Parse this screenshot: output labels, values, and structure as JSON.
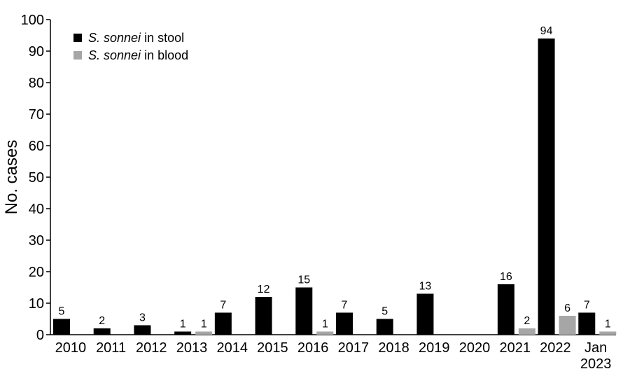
{
  "chart_data": {
    "type": "bar",
    "title": "",
    "xlabel": "",
    "ylabel": "No. cases",
    "ylim": [
      0,
      100
    ],
    "yticks": [
      0,
      10,
      20,
      30,
      40,
      50,
      60,
      70,
      80,
      90,
      100
    ],
    "categories": [
      [
        "2010"
      ],
      [
        "2011"
      ],
      [
        "2012"
      ],
      [
        "2013"
      ],
      [
        "2014"
      ],
      [
        "2015"
      ],
      [
        "2016"
      ],
      [
        "2017"
      ],
      [
        "2018"
      ],
      [
        "2019"
      ],
      [
        "2020"
      ],
      [
        "2021"
      ],
      [
        "2022"
      ],
      [
        "Jan",
        "2023"
      ]
    ],
    "series": [
      {
        "name_italic": "S. sonnei",
        "name_rest": " in stool",
        "color": "#000000",
        "values": [
          5,
          2,
          3,
          1,
          7,
          12,
          15,
          7,
          5,
          13,
          0,
          16,
          94,
          7
        ],
        "labels": [
          "5",
          "2",
          "3",
          "1",
          "7",
          "12",
          "15",
          "7",
          "5",
          "13",
          "",
          "16",
          "94",
          "7"
        ]
      },
      {
        "name_italic": "S. sonnei",
        "name_rest": " in blood",
        "color": "#a6a6a6",
        "values": [
          0,
          0,
          0,
          1,
          0,
          0,
          1,
          0,
          0,
          0,
          0,
          2,
          6,
          1
        ],
        "labels": [
          "",
          "",
          "",
          "1",
          "",
          "",
          "1",
          "",
          "",
          "",
          "",
          "2",
          "6",
          "1"
        ]
      }
    ],
    "legend_position": "top-left",
    "grid": false
  }
}
